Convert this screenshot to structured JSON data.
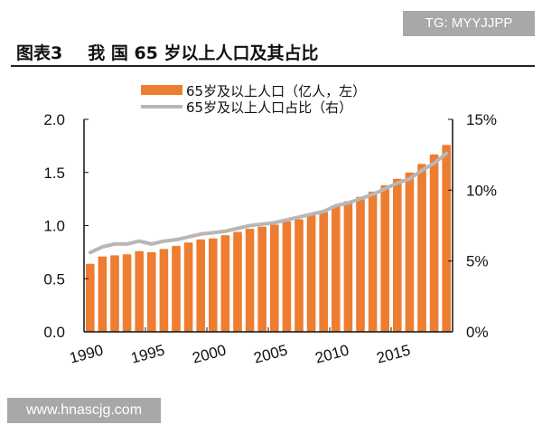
{
  "watermarks": {
    "top": "TG: MYYJJPP",
    "bottom": "www.hnascjg.com"
  },
  "header": {
    "label": "图表3",
    "title": "我 国 65 岁以上人口及其占比"
  },
  "colors": {
    "bar": "#ed7d31",
    "line": "#b7b7b7"
  },
  "chart_data": {
    "type": "bar+line",
    "x": [
      1990,
      1991,
      1992,
      1993,
      1994,
      1995,
      1996,
      1997,
      1998,
      1999,
      2000,
      2001,
      2002,
      2003,
      2004,
      2005,
      2006,
      2007,
      2008,
      2009,
      2010,
      2011,
      2012,
      2013,
      2014,
      2015,
      2016,
      2017,
      2018,
      2019
    ],
    "x_tick_labels": [
      "1990",
      "1995",
      "2000",
      "2005",
      "2010",
      "2015"
    ],
    "series": [
      {
        "name": "65岁及以上人口（亿人，左）",
        "type": "bar",
        "axis": "left",
        "values": [
          0.64,
          0.71,
          0.72,
          0.73,
          0.76,
          0.75,
          0.78,
          0.81,
          0.84,
          0.87,
          0.88,
          0.91,
          0.94,
          0.97,
          0.99,
          1.01,
          1.04,
          1.06,
          1.1,
          1.13,
          1.19,
          1.23,
          1.27,
          1.32,
          1.38,
          1.44,
          1.5,
          1.58,
          1.67,
          1.76
        ]
      },
      {
        "name": "65岁及以上人口占比（右）",
        "type": "line",
        "axis": "right",
        "values": [
          5.6,
          6.0,
          6.2,
          6.2,
          6.4,
          6.2,
          6.4,
          6.5,
          6.7,
          6.9,
          7.0,
          7.1,
          7.3,
          7.5,
          7.6,
          7.7,
          7.9,
          8.1,
          8.3,
          8.5,
          8.9,
          9.1,
          9.4,
          9.7,
          10.1,
          10.5,
          10.8,
          11.4,
          11.9,
          12.6
        ]
      }
    ],
    "left_axis": {
      "ylim": [
        0,
        2.0
      ],
      "ticks": [
        "0.0",
        "0.5",
        "1.0",
        "1.5",
        "2.0"
      ]
    },
    "right_axis": {
      "ylim": [
        0,
        15
      ],
      "ticks": [
        "0%",
        "5%",
        "10%",
        "15%"
      ]
    },
    "legend": "top-center",
    "grid": false
  }
}
